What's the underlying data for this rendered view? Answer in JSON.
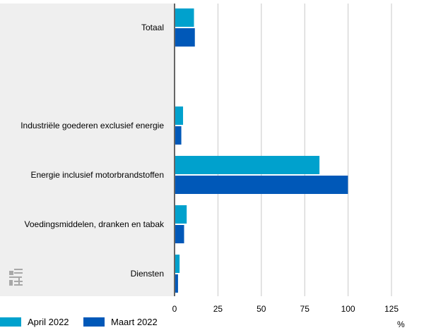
{
  "colors": {
    "panel_bg": "#efefef",
    "grid": "#c8c8c8",
    "axis": "#666666",
    "logo": "#a8a8a8"
  },
  "legend": [
    {
      "label": "April 2022",
      "color": "#00a1cd"
    },
    {
      "label": "Maart 2022",
      "color": "#0058b8"
    }
  ],
  "unit": "%",
  "chart_data": {
    "type": "bar",
    "orientation": "horizontal",
    "categories": [
      "Totaal",
      "",
      "Industriële goederen exclusief energie",
      "Energie inclusief motorbrandstoffen",
      "Voedingsmiddelen, dranken en tabak",
      "Diensten"
    ],
    "series": [
      {
        "name": "April 2022",
        "color": "#00a1cd",
        "values": [
          11.2,
          null,
          4.9,
          83.5,
          7.0,
          2.9
        ]
      },
      {
        "name": "Maart 2022",
        "color": "#0058b8",
        "values": [
          11.7,
          null,
          3.9,
          99.9,
          5.5,
          2.0
        ]
      }
    ],
    "xlim": [
      0,
      125
    ],
    "ticks": [
      0,
      25,
      50,
      75,
      100,
      125
    ],
    "tick_labels": [
      "0",
      "25",
      "50",
      "75",
      "100",
      "125"
    ],
    "grid": true,
    "legend_position": "bottom-left"
  }
}
